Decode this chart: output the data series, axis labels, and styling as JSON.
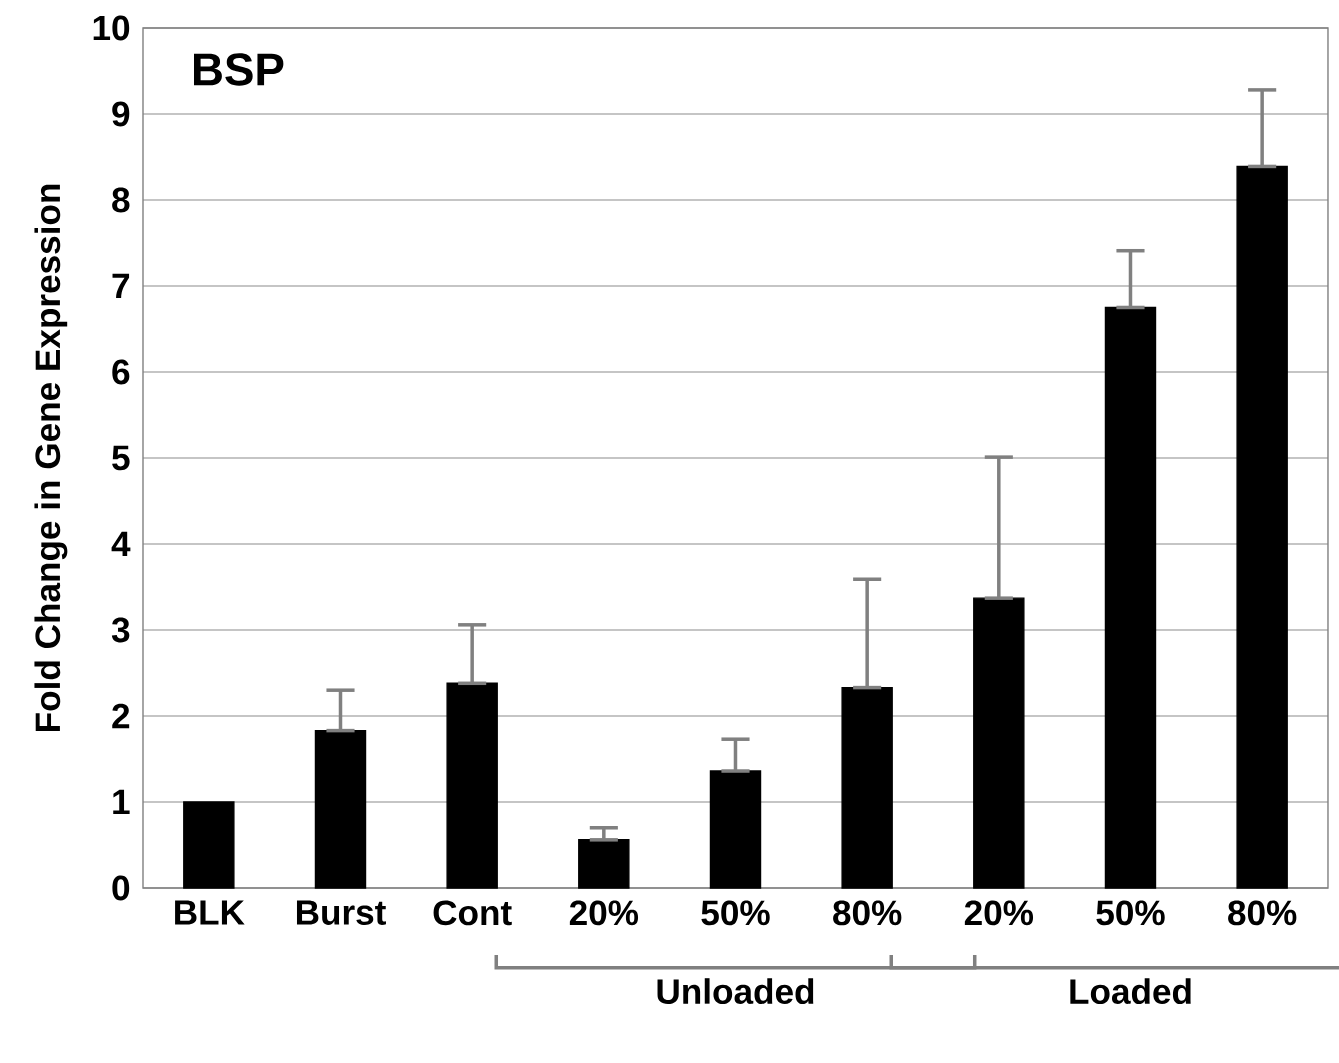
{
  "chart_data": {
    "type": "bar",
    "categories": [
      "BLK",
      "Burst",
      "Cont",
      "20%",
      "50%",
      "80%",
      "20%",
      "50%",
      "80%"
    ],
    "values": [
      1.0,
      1.83,
      2.38,
      0.56,
      1.36,
      2.33,
      3.37,
      6.75,
      8.39
    ],
    "errors": [
      null,
      [
        1.83,
        2.3
      ],
      [
        2.38,
        3.06
      ],
      [
        0.56,
        0.7
      ],
      [
        1.36,
        1.73
      ],
      [
        2.33,
        3.59
      ],
      [
        3.37,
        5.01
      ],
      [
        6.75,
        7.41
      ],
      [
        8.39,
        9.28
      ]
    ],
    "color": "#000000",
    "ylabel": "Fold Change in Gene Expression",
    "ylim": [
      0,
      10
    ],
    "yticks": [
      0,
      1,
      2,
      3,
      4,
      5,
      6,
      7,
      8,
      9,
      10
    ],
    "grid": "y",
    "annotations": [
      "BSP",
      "Unloaded",
      "Loaded"
    ]
  }
}
